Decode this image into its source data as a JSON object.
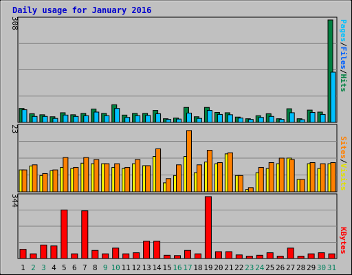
{
  "chart_data": {
    "type": "bar",
    "title": "Daily usage for January 2016",
    "categories": [
      "1",
      "2",
      "3",
      "4",
      "5",
      "6",
      "7",
      "8",
      "9",
      "10",
      "11",
      "12",
      "13",
      "14",
      "15",
      "16",
      "17",
      "18",
      "19",
      "20",
      "21",
      "22",
      "23",
      "24",
      "25",
      "26",
      "27",
      "28",
      "29",
      "30",
      "31"
    ],
    "weekend_days": [
      "2",
      "3",
      "9",
      "10",
      "16",
      "17",
      "23",
      "24",
      "30",
      "31"
    ],
    "panels": [
      {
        "id": "hits",
        "ymax_label": "308",
        "ymax": 308,
        "right_labels": [
          "Pages",
          "/",
          "Files",
          "/",
          "Hits"
        ],
        "series": [
          {
            "name": "Hits",
            "values": [
              42,
              26,
              23,
              17,
              29,
              23,
              27,
              40,
              27,
              53,
              22,
              27,
              27,
              36,
              11,
              13,
              45,
              17,
              45,
              30,
              29,
              16,
              11,
              20,
              26,
              11,
              41,
              11,
              37,
              31,
              308
            ]
          },
          {
            "name": "Files",
            "values": [
              38,
              18,
              18,
              12,
              22,
              18,
              20,
              31,
              20,
              42,
              15,
              20,
              21,
              26,
              9,
              10,
              28,
              12,
              36,
              24,
              23,
              13,
              9,
              15,
              18,
              9,
              29,
              8,
              30,
              24,
              151
            ]
          },
          {
            "name": "Pages",
            "values": [
              42,
              26,
              23,
              17,
              29,
              23,
              27,
              40,
              27,
              53,
              22,
              27,
              27,
              36,
              11,
              13,
              45,
              17,
              45,
              30,
              29,
              16,
              11,
              20,
              26,
              11,
              41,
              11,
              37,
              31,
              308
            ]
          }
        ]
      },
      {
        "id": "visits",
        "ymax_label": "23",
        "ymax": 23,
        "right_labels": [
          "Sites",
          "/",
          "Visits"
        ],
        "series": [
          {
            "name": "Visits",
            "values": [
              7.8,
              9.2,
              5.8,
              7.5,
              8.7,
              8.3,
              10.2,
              10.0,
              10.0,
              8.7,
              8.3,
              10.0,
              9.3,
              12.6,
              3.2,
              5.8,
              12.6,
              6.8,
              10.6,
              10.0,
              13.5,
              5.8,
              0.8,
              6.8,
              8.3,
              10.0,
              12.0,
              4.4,
              10.0,
              8.3,
              10.0
            ]
          },
          {
            "name": "Sites",
            "values": [
              7.8,
              9.6,
              6.5,
              7.8,
              12.2,
              8.7,
              12.2,
              11.5,
              10.0,
              10.0,
              8.7,
              11.5,
              9.3,
              15.3,
              4.7,
              9.6,
              21.8,
              9.6,
              14.8,
              10.4,
              13.9,
              5.8,
              1.5,
              8.7,
              10.4,
              12.0,
              11.5,
              4.4,
              10.4,
              10.0,
              10.4
            ]
          }
        ]
      },
      {
        "id": "kbytes",
        "ymax_label": "344",
        "ymax": 344,
        "right_labels": [
          "KBytes"
        ],
        "series": [
          {
            "name": "KBytes",
            "values": [
              51,
              26,
              75,
              70,
              270,
              26,
              265,
              45,
              26,
              58,
              26,
              32,
              96,
              96,
              18,
              16,
              45,
              26,
              344,
              38,
              38,
              20,
              13,
              18,
              32,
              13,
              58,
              13,
              26,
              32,
              26
            ]
          }
        ]
      }
    ]
  },
  "colors": {
    "background": "#c0c0c0",
    "plot_background": "#c0c0c0",
    "title": "#0000cc",
    "hits": "#008040",
    "files": "#00c0ff",
    "pages": "#00c0ff",
    "visits": "#ffff00",
    "sites": "#ff8000",
    "kbytes": "#ff0000",
    "weekday_label": "#000000",
    "weekend_label": "#00805c",
    "grid": "#808080"
  }
}
